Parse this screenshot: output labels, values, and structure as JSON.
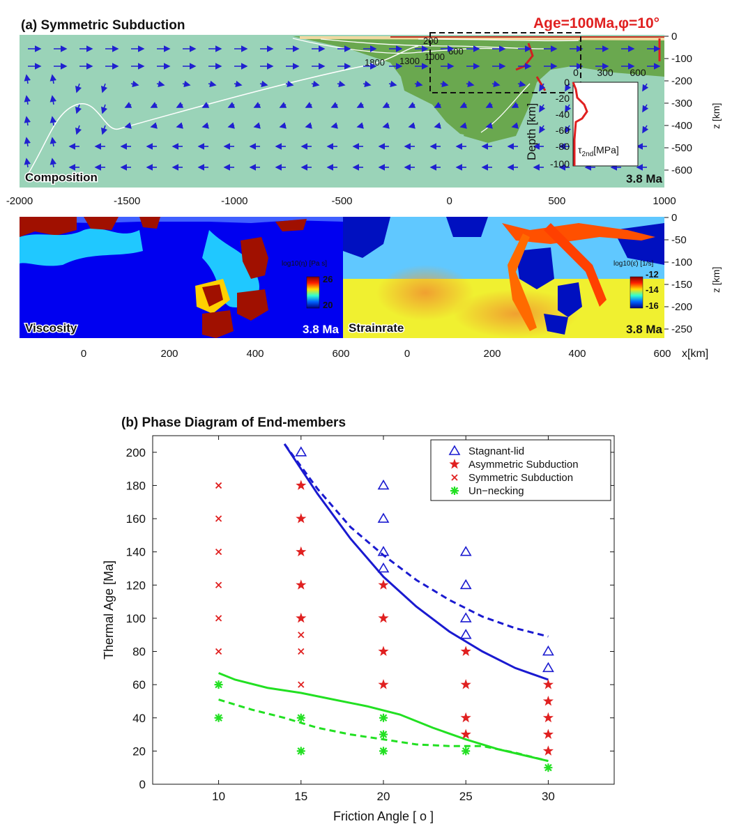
{
  "panel_a": {
    "title": "(a) Symmetric Subduction",
    "age_label": "Age=100Ma,φ=10°",
    "composition_label": "Composition",
    "time_label": "3.8 Ma",
    "isotherms": [
      "200",
      "600",
      "1000",
      "1300",
      "1800"
    ],
    "x_ticks": [
      "-2000",
      "-1500",
      "-1000",
      "-500",
      "0",
      "500",
      "1000"
    ],
    "z_ticks": [
      "0",
      "-100",
      "-200",
      "-300",
      "-400",
      "-500",
      "-600"
    ],
    "z_axis_label": "z [km]",
    "inset": {
      "x_ticks": [
        "0",
        "300",
        "600"
      ],
      "y_ticks": [
        "0",
        "-20",
        "-40",
        "-60",
        "-80",
        "-100"
      ],
      "y_label": "Depth [km]",
      "x_label": "τ",
      "x_label_sub": "2nd",
      "x_label_unit": "[MPa]"
    },
    "viscosity": {
      "label": "Viscosity",
      "time_label": "3.8 Ma",
      "colorbar_title": "log10(η) [Pa s]",
      "colorbar_ticks": [
        "26",
        "20"
      ]
    },
    "strainrate": {
      "label": "Strainrate",
      "time_label": "3.8 Ma",
      "colorbar_title": "log10(ε̇) [1/s]",
      "colorbar_ticks": [
        "-12",
        "-14",
        "-16"
      ]
    },
    "zoom_x_ticks_left": [
      "0",
      "200",
      "400",
      "600"
    ],
    "zoom_x_ticks_right": [
      "0",
      "200",
      "400",
      "600"
    ],
    "zoom_z_ticks": [
      "0",
      "-50",
      "-100",
      "-150",
      "-200",
      "-250"
    ],
    "zoom_z_label": "z [km]",
    "x_unit_label": "x[km]"
  },
  "panel_b": {
    "title": "(b)  Phase Diagram of End-members"
  },
  "chart_data": {
    "type": "scatter",
    "title": "Phase Diagram of End-members",
    "xlabel": "Friction Angle [ o ]",
    "ylabel": "Thermal Age [Ma]",
    "xlim": [
      6,
      34
    ],
    "ylim": [
      0,
      210
    ],
    "x_ticks": [
      10,
      15,
      20,
      25,
      30
    ],
    "y_ticks": [
      0,
      20,
      40,
      60,
      80,
      100,
      120,
      140,
      160,
      180,
      200
    ],
    "legend": [
      {
        "name": "Stagnant-lid",
        "marker": "triangle",
        "color": "#1a1ad0"
      },
      {
        "name": "Asymmetric Subduction",
        "marker": "star",
        "color": "#e02020"
      },
      {
        "name": "Symmetric Subduction",
        "marker": "x",
        "color": "#e02020"
      },
      {
        "name": "Un−necking",
        "marker": "asterisk",
        "color": "#22e022"
      }
    ],
    "series": [
      {
        "name": "Stagnant-lid",
        "points": [
          [
            15,
            200
          ],
          [
            20,
            180
          ],
          [
            20,
            160
          ],
          [
            20,
            140
          ],
          [
            20,
            130
          ],
          [
            25,
            140
          ],
          [
            25,
            120
          ],
          [
            25,
            100
          ],
          [
            25,
            90
          ],
          [
            30,
            80
          ],
          [
            30,
            70
          ]
        ]
      },
      {
        "name": "Asymmetric Subduction",
        "points": [
          [
            15,
            180
          ],
          [
            15,
            160
          ],
          [
            15,
            140
          ],
          [
            15,
            120
          ],
          [
            15,
            100
          ],
          [
            20,
            120
          ],
          [
            20,
            100
          ],
          [
            20,
            80
          ],
          [
            20,
            60
          ],
          [
            25,
            80
          ],
          [
            25,
            60
          ],
          [
            25,
            40
          ],
          [
            25,
            30
          ],
          [
            30,
            60
          ],
          [
            30,
            50
          ],
          [
            30,
            40
          ],
          [
            30,
            30
          ],
          [
            30,
            20
          ]
        ]
      },
      {
        "name": "Symmetric Subduction",
        "points": [
          [
            10,
            180
          ],
          [
            10,
            160
          ],
          [
            10,
            140
          ],
          [
            10,
            120
          ],
          [
            10,
            100
          ],
          [
            10,
            80
          ],
          [
            15,
            90
          ],
          [
            15,
            80
          ],
          [
            15,
            60
          ]
        ]
      },
      {
        "name": "Un−necking",
        "points": [
          [
            10,
            60
          ],
          [
            10,
            40
          ],
          [
            15,
            40
          ],
          [
            15,
            20
          ],
          [
            20,
            40
          ],
          [
            20,
            30
          ],
          [
            20,
            20
          ],
          [
            25,
            20
          ],
          [
            30,
            10
          ]
        ]
      }
    ],
    "lines": [
      {
        "color": "#1a1ad0",
        "style": "solid",
        "points": [
          [
            14,
            205
          ],
          [
            16,
            175
          ],
          [
            18,
            148
          ],
          [
            20,
            125
          ],
          [
            22,
            107
          ],
          [
            24,
            92
          ],
          [
            26,
            80
          ],
          [
            28,
            70
          ],
          [
            30,
            63
          ]
        ]
      },
      {
        "color": "#1a1ad0",
        "style": "dashed",
        "points": [
          [
            14,
            205
          ],
          [
            16,
            178
          ],
          [
            18,
            155
          ],
          [
            20,
            138
          ],
          [
            22,
            123
          ],
          [
            24,
            111
          ],
          [
            26,
            101
          ],
          [
            28,
            94
          ],
          [
            30,
            89
          ]
        ]
      },
      {
        "color": "#22e022",
        "style": "solid",
        "points": [
          [
            10,
            67
          ],
          [
            11,
            63
          ],
          [
            13,
            58
          ],
          [
            15,
            55
          ],
          [
            17,
            51
          ],
          [
            19,
            47
          ],
          [
            21,
            42
          ],
          [
            23,
            34
          ],
          [
            25,
            27
          ],
          [
            27,
            21
          ],
          [
            30,
            14
          ]
        ]
      },
      {
        "color": "#22e022",
        "style": "dashed",
        "points": [
          [
            10,
            51
          ],
          [
            12,
            45
          ],
          [
            14,
            40
          ],
          [
            16,
            34
          ],
          [
            18,
            30
          ],
          [
            20,
            27
          ],
          [
            22,
            24
          ],
          [
            24,
            23
          ],
          [
            26,
            23
          ],
          [
            28,
            19
          ],
          [
            30,
            14
          ]
        ]
      }
    ]
  }
}
